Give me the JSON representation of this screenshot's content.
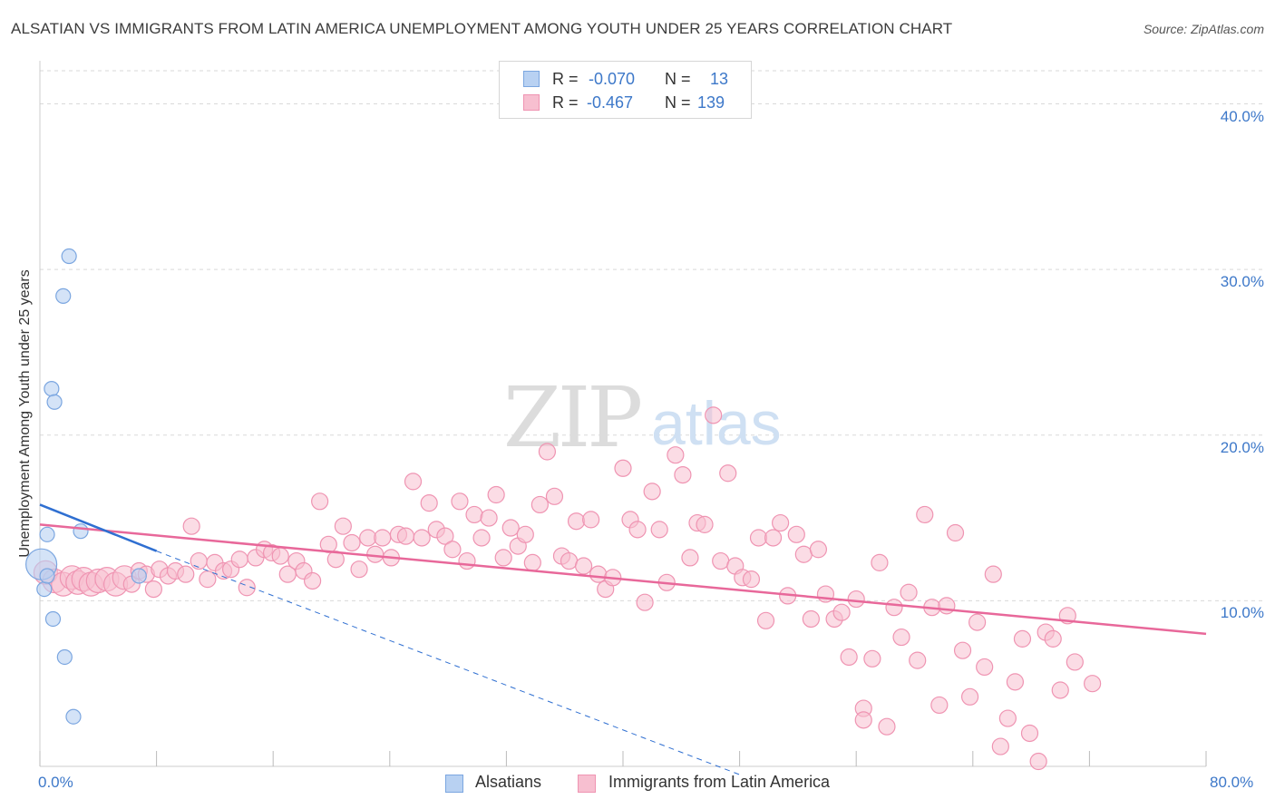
{
  "title": "ALSATIAN VS IMMIGRANTS FROM LATIN AMERICA UNEMPLOYMENT AMONG YOUTH UNDER 25 YEARS CORRELATION CHART",
  "source": "Source: ZipAtlas.com",
  "watermark": {
    "zip": "ZIP",
    "atlas": "atlas"
  },
  "legend": {
    "rows": [
      {
        "r_label": "R = ",
        "r_value": "-0.070",
        "n_label": "N = ",
        "n_value": "13"
      },
      {
        "r_label": "R = ",
        "r_value": "-0.467",
        "n_label": "N = ",
        "n_value": "139"
      }
    ]
  },
  "bottom_legend": {
    "series_a": "Alsatians",
    "series_b": "Immigrants from Latin America"
  },
  "colors": {
    "alsatian_fill": "#b8d1f2",
    "alsatian_stroke": "#7ba6e0",
    "alsatian_line": "#2f6fd1",
    "latin_fill": "#f7bfd0",
    "latin_stroke": "#ef94b2",
    "latin_line": "#e8689a",
    "tick_text": "#3d78c9",
    "grid": "#d9d9d9"
  },
  "chart_data": {
    "type": "scatter",
    "title": "ALSATIAN VS IMMIGRANTS FROM LATIN AMERICA UNEMPLOYMENT AMONG YOUTH UNDER 25 YEARS CORRELATION CHART",
    "xlabel": "",
    "ylabel": "Unemployment Among Youth under 25 years",
    "xlim": [
      0,
      80
    ],
    "ylim": [
      0,
      42
    ],
    "x_tick_labels": [
      "0.0%",
      "80.0%"
    ],
    "y_tick_labels": [
      "10.0%",
      "20.0%",
      "30.0%",
      "40.0%"
    ],
    "y_ticks": [
      10,
      20,
      30,
      40
    ],
    "grid": true,
    "legend_position": "top-center",
    "series": [
      {
        "name": "Alsatians",
        "r": -0.07,
        "n": 13,
        "points": [
          [
            0.1,
            12.2
          ],
          [
            0.3,
            10.7
          ],
          [
            0.5,
            14.0
          ],
          [
            0.5,
            11.5
          ],
          [
            0.8,
            22.8
          ],
          [
            1.0,
            22.0
          ],
          [
            0.9,
            8.9
          ],
          [
            1.6,
            28.4
          ],
          [
            2.0,
            30.8
          ],
          [
            1.7,
            6.6
          ],
          [
            2.3,
            3.0
          ],
          [
            2.8,
            14.2
          ],
          [
            6.8,
            11.5
          ]
        ],
        "trend": {
          "x0": 0,
          "y0": 15.8,
          "x1": 8,
          "y1": 13.0
        },
        "trend_extended": {
          "x0": 8,
          "y0": 13.0,
          "x1": 48,
          "y1": -0.5
        }
      },
      {
        "name": "Immigrants from Latin America",
        "r": -0.467,
        "n": 139,
        "points": [
          [
            0.4,
            11.7
          ],
          [
            1.0,
            11.2
          ],
          [
            1.6,
            11.0
          ],
          [
            2.2,
            11.4
          ],
          [
            2.6,
            11.1
          ],
          [
            3.0,
            11.3
          ],
          [
            3.5,
            11.0
          ],
          [
            4.0,
            11.2
          ],
          [
            4.6,
            11.3
          ],
          [
            5.2,
            11.0
          ],
          [
            5.8,
            11.4
          ],
          [
            6.3,
            11.0
          ],
          [
            6.8,
            11.8
          ],
          [
            7.3,
            11.6
          ],
          [
            7.8,
            10.7
          ],
          [
            8.2,
            11.9
          ],
          [
            8.8,
            11.5
          ],
          [
            9.3,
            11.8
          ],
          [
            10.0,
            11.6
          ],
          [
            10.4,
            14.5
          ],
          [
            10.9,
            12.4
          ],
          [
            11.5,
            11.3
          ],
          [
            12.0,
            12.3
          ],
          [
            12.6,
            11.8
          ],
          [
            13.1,
            11.9
          ],
          [
            13.7,
            12.5
          ],
          [
            14.2,
            10.8
          ],
          [
            14.8,
            12.6
          ],
          [
            15.4,
            13.1
          ],
          [
            15.9,
            12.9
          ],
          [
            16.5,
            12.7
          ],
          [
            17.0,
            11.6
          ],
          [
            17.6,
            12.4
          ],
          [
            18.1,
            11.8
          ],
          [
            18.7,
            11.2
          ],
          [
            19.2,
            16.0
          ],
          [
            19.8,
            13.4
          ],
          [
            20.3,
            12.5
          ],
          [
            20.8,
            14.5
          ],
          [
            21.4,
            13.5
          ],
          [
            21.9,
            11.9
          ],
          [
            22.5,
            13.8
          ],
          [
            23.0,
            12.8
          ],
          [
            23.5,
            13.8
          ],
          [
            24.1,
            12.6
          ],
          [
            24.6,
            14.0
          ],
          [
            25.1,
            13.9
          ],
          [
            25.6,
            17.2
          ],
          [
            26.2,
            13.8
          ],
          [
            26.7,
            15.9
          ],
          [
            27.2,
            14.3
          ],
          [
            27.8,
            13.9
          ],
          [
            28.3,
            13.1
          ],
          [
            28.8,
            16.0
          ],
          [
            29.3,
            12.4
          ],
          [
            29.8,
            15.2
          ],
          [
            30.3,
            13.8
          ],
          [
            30.8,
            15.0
          ],
          [
            31.3,
            16.4
          ],
          [
            31.8,
            12.6
          ],
          [
            32.3,
            14.4
          ],
          [
            32.8,
            13.3
          ],
          [
            33.3,
            14.0
          ],
          [
            33.8,
            12.3
          ],
          [
            34.3,
            15.8
          ],
          [
            34.8,
            19.0
          ],
          [
            35.3,
            16.3
          ],
          [
            35.8,
            12.7
          ],
          [
            36.3,
            12.4
          ],
          [
            36.8,
            14.8
          ],
          [
            37.3,
            12.1
          ],
          [
            37.8,
            14.9
          ],
          [
            38.3,
            11.6
          ],
          [
            38.8,
            10.7
          ],
          [
            39.3,
            11.4
          ],
          [
            40.0,
            18.0
          ],
          [
            40.5,
            14.9
          ],
          [
            41.0,
            14.3
          ],
          [
            41.5,
            9.9
          ],
          [
            42.0,
            16.6
          ],
          [
            42.5,
            14.3
          ],
          [
            43.0,
            11.1
          ],
          [
            43.6,
            18.8
          ],
          [
            44.1,
            17.6
          ],
          [
            44.6,
            12.6
          ],
          [
            45.1,
            14.7
          ],
          [
            45.6,
            14.6
          ],
          [
            46.2,
            21.2
          ],
          [
            46.7,
            12.4
          ],
          [
            47.2,
            17.7
          ],
          [
            47.7,
            12.1
          ],
          [
            48.2,
            11.4
          ],
          [
            48.8,
            11.3
          ],
          [
            49.3,
            13.8
          ],
          [
            49.8,
            8.8
          ],
          [
            50.3,
            13.8
          ],
          [
            50.8,
            14.7
          ],
          [
            51.3,
            10.3
          ],
          [
            51.9,
            14.0
          ],
          [
            52.4,
            12.8
          ],
          [
            52.9,
            8.9
          ],
          [
            53.4,
            13.1
          ],
          [
            53.9,
            10.4
          ],
          [
            54.5,
            8.9
          ],
          [
            55.0,
            9.3
          ],
          [
            55.5,
            6.6
          ],
          [
            56.0,
            10.1
          ],
          [
            56.5,
            3.5
          ],
          [
            57.1,
            6.5
          ],
          [
            57.6,
            12.3
          ],
          [
            58.1,
            2.4
          ],
          [
            58.6,
            9.6
          ],
          [
            59.1,
            7.8
          ],
          [
            59.6,
            10.5
          ],
          [
            60.2,
            6.4
          ],
          [
            60.7,
            15.2
          ],
          [
            61.2,
            9.6
          ],
          [
            61.7,
            3.7
          ],
          [
            62.2,
            9.7
          ],
          [
            62.8,
            14.1
          ],
          [
            63.3,
            7.0
          ],
          [
            63.8,
            4.2
          ],
          [
            64.3,
            8.7
          ],
          [
            64.8,
            6.0
          ],
          [
            65.4,
            11.6
          ],
          [
            65.9,
            1.2
          ],
          [
            66.4,
            2.9
          ],
          [
            66.9,
            5.1
          ],
          [
            67.4,
            7.7
          ],
          [
            67.9,
            2.0
          ],
          [
            68.5,
            0.3
          ],
          [
            69.0,
            8.1
          ],
          [
            69.5,
            7.7
          ],
          [
            70.0,
            4.6
          ],
          [
            70.5,
            9.1
          ],
          [
            71.0,
            6.3
          ],
          [
            72.2,
            5.0
          ],
          [
            56.5,
            2.8
          ]
        ],
        "trend": {
          "x0": 0,
          "y0": 14.6,
          "x1": 80,
          "y1": 8.0
        }
      }
    ]
  }
}
